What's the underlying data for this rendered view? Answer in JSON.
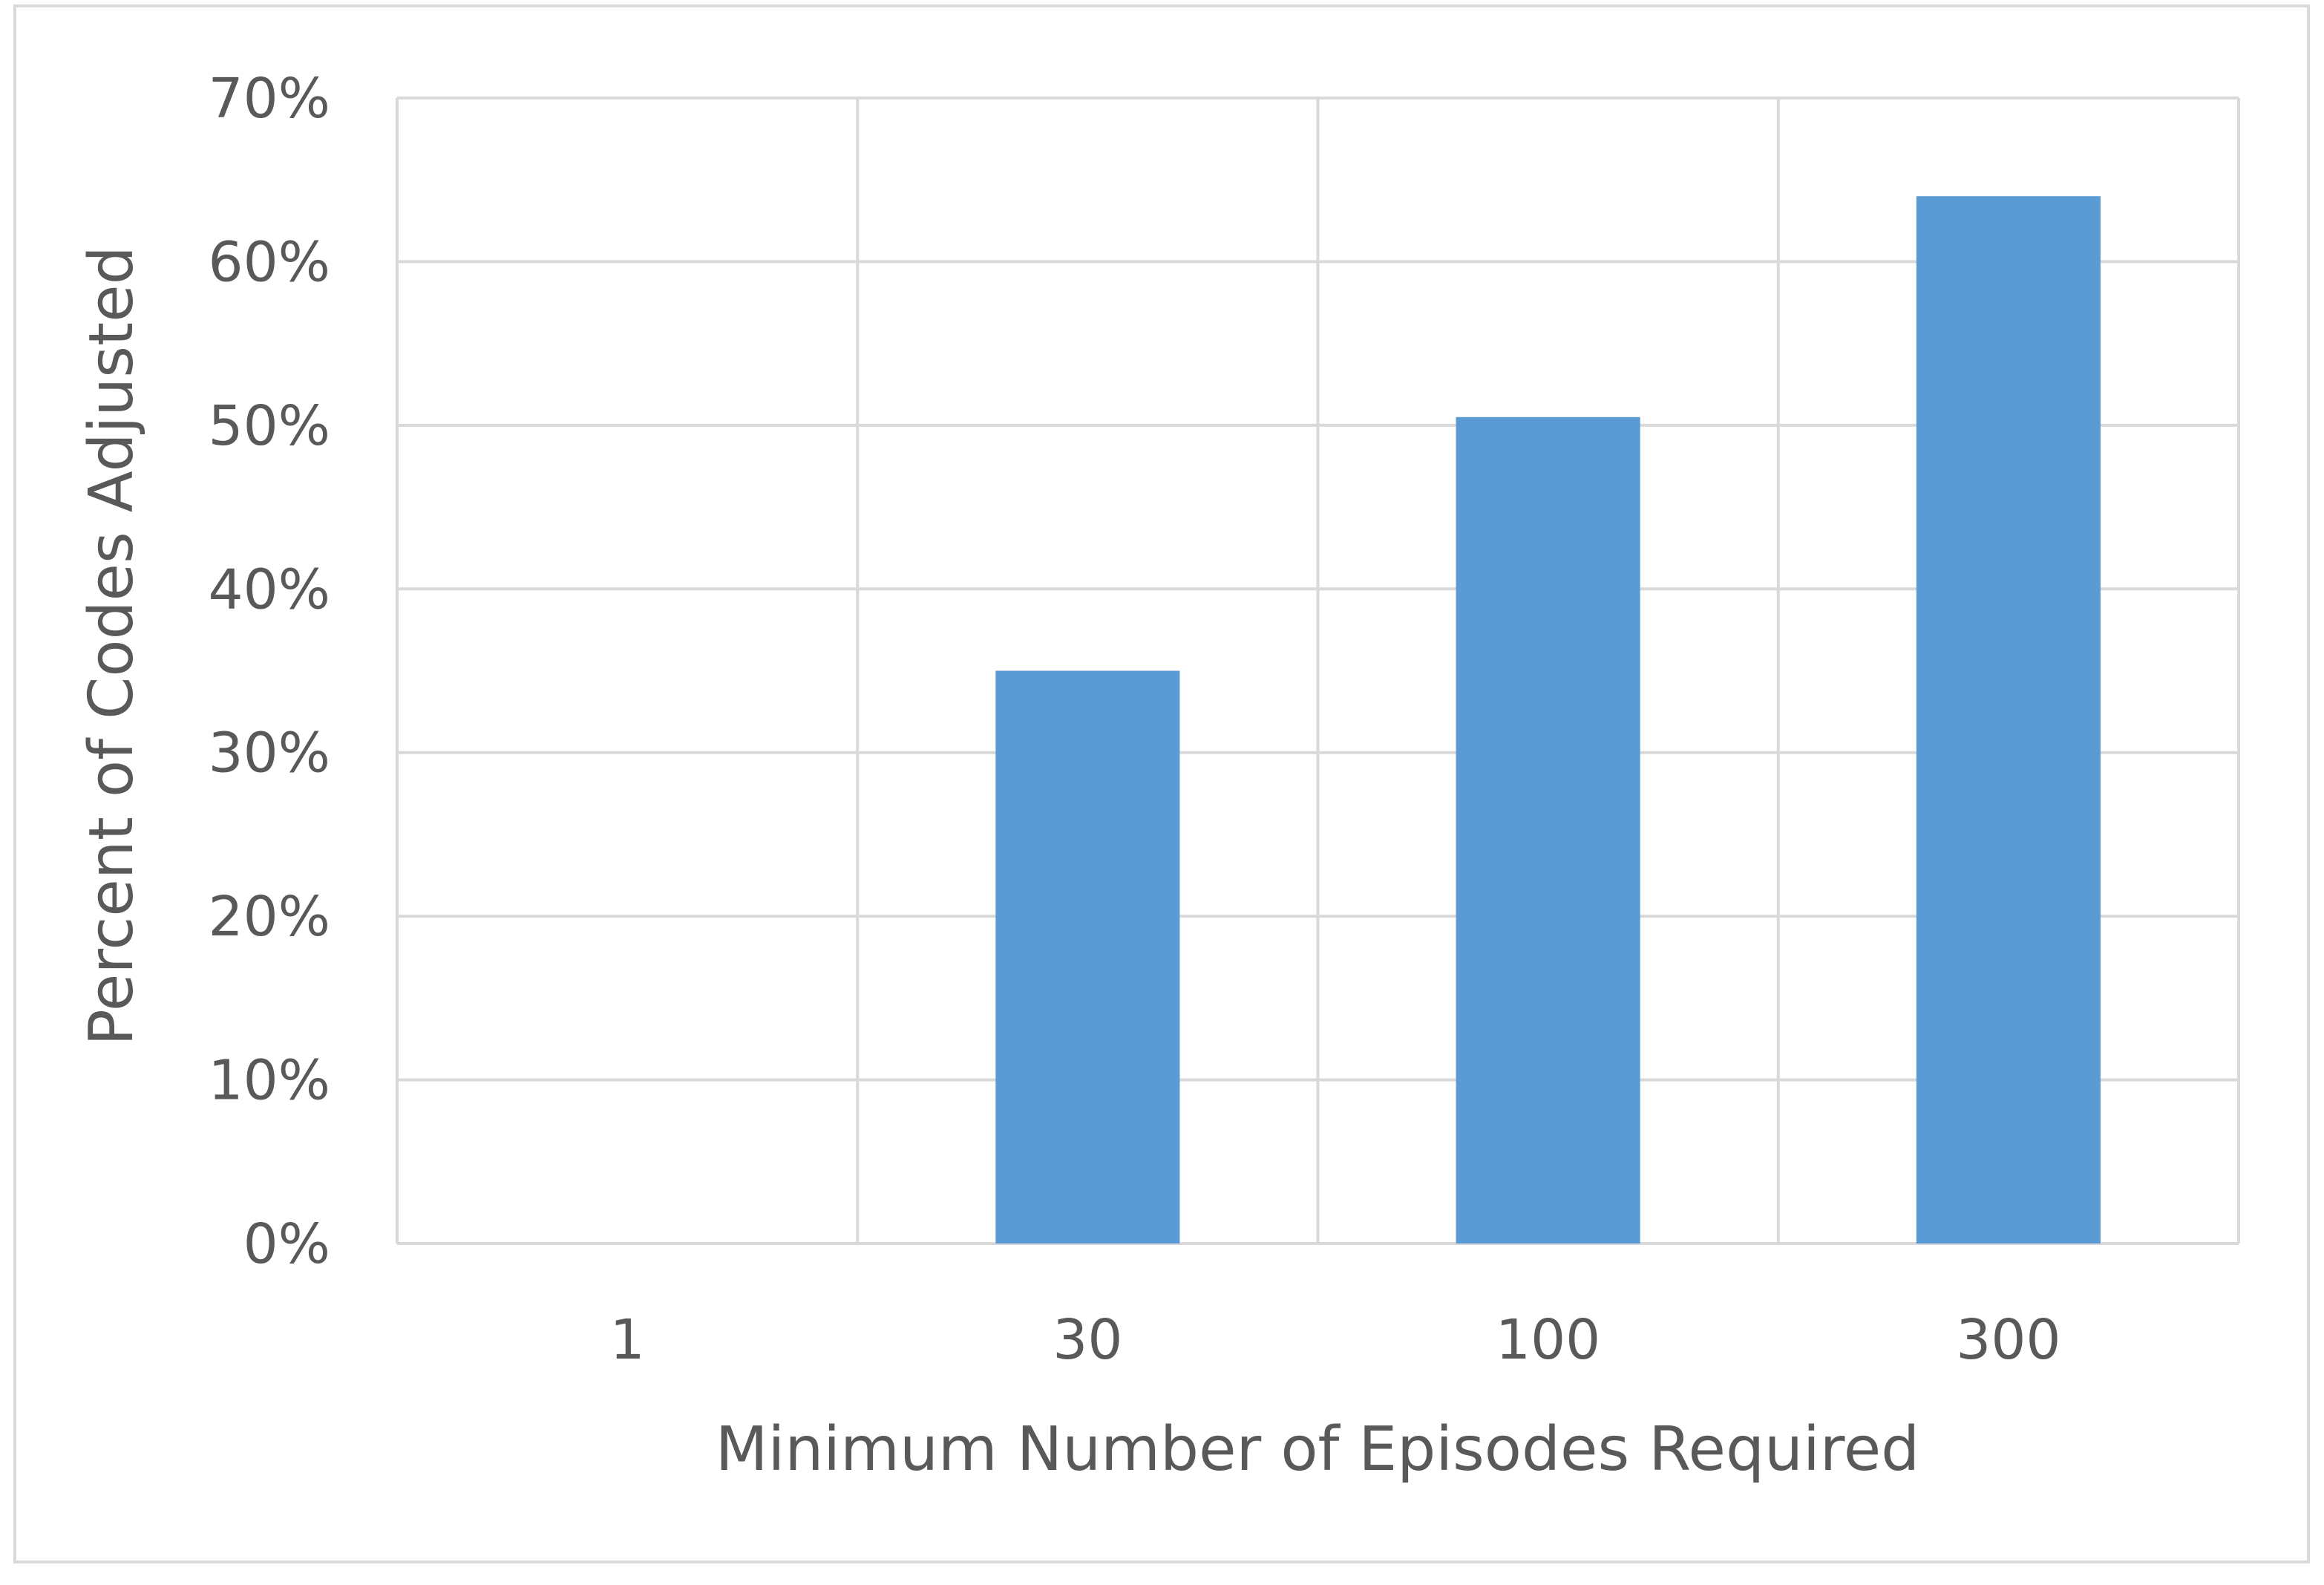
{
  "chart_data": {
    "type": "bar",
    "title": "",
    "xlabel": "Minimum Number of Episodes Required",
    "ylabel": "Percent of Codes Adjusted",
    "categories": [
      "1",
      "30",
      "100",
      "300"
    ],
    "values": [
      0,
      35,
      50.5,
      64
    ],
    "ylim": [
      0,
      70
    ],
    "yticks": [
      0,
      10,
      20,
      30,
      40,
      50,
      60,
      70
    ],
    "ytick_labels": [
      "0%",
      "10%",
      "20%",
      "30%",
      "40%",
      "50%",
      "60%",
      "70%"
    ],
    "grid": true,
    "vertical_grid": true,
    "legend": "none",
    "bar_color": "#5b9bd5"
  }
}
